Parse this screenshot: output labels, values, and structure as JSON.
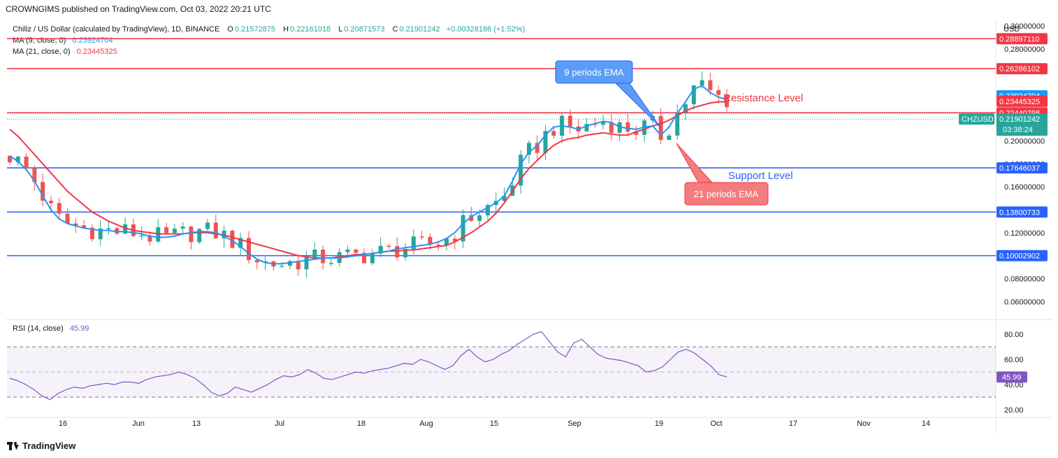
{
  "header": {
    "credit": "CROWNGIMS published on TradingView.com, Oct 03, 2022 20:21 UTC"
  },
  "legend": {
    "symbol": "Chiliz / US Dollar (calculated by TradingView), 1D, BINANCE",
    "o_label": "O",
    "o": "0.21572875",
    "h_label": "H",
    "h": "0.22161018",
    "l_label": "L",
    "l": "0.20871573",
    "c_label": "C",
    "c": "0.21901242",
    "change": "+0.00328186 (+1.52%)",
    "ma9_label": "MA (9, close, 0)",
    "ma9": "0.23924704",
    "ma21_label": "MA (21, close, 0)",
    "ma21": "0.23445325",
    "rsi_label": "RSI (14, close)",
    "rsi": "45.99"
  },
  "currency": "USD",
  "annotations": {
    "ema9": "9 periods EMA",
    "ema21": "21 periods EMA",
    "resistance": "Resistance Level",
    "support": "Support Level"
  },
  "footer": {
    "brand": "TradingView"
  },
  "colors": {
    "up": "#26a69a",
    "down": "#ef5350",
    "ma9": "#2196f3",
    "ma21": "#f23645",
    "level_red": "#f23645",
    "level_blue": "#2962ff",
    "rsi": "#7e57c2"
  },
  "chart_data": {
    "type": "candlestick",
    "ylim": [
      0.045,
      0.305
    ],
    "y_ticks": [
      "0.30000000",
      "0.28000000",
      "0.20000000",
      "0.18000000",
      "0.16000000",
      "0.12000000",
      "0.08000000",
      "0.06000000"
    ],
    "x_ticks": [
      "16",
      "Jun",
      "13",
      "Jul",
      "18",
      "Aug",
      "15",
      "Sep",
      "19",
      "Oct",
      "17",
      "Nov",
      "14"
    ],
    "resistance_levels": [
      {
        "label": "0.28897110",
        "value": 0.2889711
      },
      {
        "label": "0.26286102",
        "value": 0.26286102
      },
      {
        "label": "0.22440798",
        "value": 0.22440798
      }
    ],
    "support_levels": [
      {
        "label": "0.17646037",
        "value": 0.17646037
      },
      {
        "label": "0.13800733",
        "value": 0.13800733
      },
      {
        "label": "0.10002902",
        "value": 0.10002902
      }
    ],
    "price_tags": [
      {
        "label": "0.23924704",
        "value": 0.23924704,
        "kind": "ma9"
      },
      {
        "label": "0.23445325",
        "value": 0.23445325,
        "kind": "ma21"
      }
    ],
    "last_price": {
      "symbol": "CHZUSD",
      "label": "0.21901242",
      "value": 0.21901242,
      "countdown": "03:38:24"
    },
    "ma9_series": [
      0.187,
      0.182,
      0.175,
      0.165,
      0.152,
      0.14,
      0.132,
      0.128,
      0.126,
      0.124,
      0.123,
      0.122,
      0.122,
      0.121,
      0.121,
      0.12,
      0.119,
      0.117,
      0.116,
      0.116,
      0.117,
      0.119,
      0.12,
      0.121,
      0.121,
      0.12,
      0.117,
      0.113,
      0.108,
      0.102,
      0.097,
      0.094,
      0.093,
      0.093,
      0.094,
      0.095,
      0.096,
      0.097,
      0.098,
      0.098,
      0.098,
      0.099,
      0.1,
      0.101,
      0.102,
      0.103,
      0.104,
      0.106,
      0.107,
      0.108,
      0.109,
      0.11,
      0.112,
      0.115,
      0.12,
      0.128,
      0.134,
      0.138,
      0.142,
      0.146,
      0.152,
      0.165,
      0.18,
      0.19,
      0.196,
      0.205,
      0.212,
      0.213,
      0.212,
      0.21,
      0.213,
      0.215,
      0.217,
      0.216,
      0.212,
      0.211,
      0.21,
      0.212,
      0.213,
      0.205,
      0.212,
      0.224,
      0.234,
      0.245,
      0.248,
      0.242,
      0.238,
      0.236
    ],
    "ma21_series": [
      0.21,
      0.204,
      0.196,
      0.188,
      0.18,
      0.172,
      0.164,
      0.156,
      0.15,
      0.144,
      0.138,
      0.134,
      0.13,
      0.127,
      0.124,
      0.122,
      0.121,
      0.12,
      0.119,
      0.119,
      0.119,
      0.119,
      0.12,
      0.12,
      0.12,
      0.119,
      0.118,
      0.116,
      0.114,
      0.112,
      0.11,
      0.108,
      0.106,
      0.104,
      0.102,
      0.1,
      0.099,
      0.098,
      0.098,
      0.098,
      0.099,
      0.1,
      0.101,
      0.101,
      0.102,
      0.103,
      0.104,
      0.104,
      0.105,
      0.105,
      0.106,
      0.107,
      0.108,
      0.109,
      0.112,
      0.116,
      0.12,
      0.125,
      0.13,
      0.137,
      0.146,
      0.156,
      0.167,
      0.176,
      0.183,
      0.19,
      0.196,
      0.2,
      0.202,
      0.203,
      0.205,
      0.206,
      0.207,
      0.206,
      0.205,
      0.205,
      0.208,
      0.21,
      0.213,
      0.215,
      0.218,
      0.222,
      0.226,
      0.229,
      0.231,
      0.233,
      0.234,
      0.234
    ],
    "rsi": {
      "ylim": [
        15,
        90
      ],
      "y_ticks": [
        "80.00",
        "60.00",
        "40.00",
        "20.00"
      ],
      "bands": [
        70,
        50,
        30
      ],
      "values": [
        45,
        43,
        40,
        36,
        31,
        28,
        33,
        36,
        38,
        37,
        39,
        40,
        41,
        40,
        42,
        42,
        41,
        44,
        46,
        47,
        48,
        50,
        48,
        45,
        40,
        34,
        31,
        33,
        38,
        36,
        34,
        37,
        40,
        44,
        47,
        46,
        48,
        52,
        49,
        45,
        44,
        46,
        48,
        50,
        49,
        51,
        52,
        53,
        55,
        57,
        56,
        60,
        58,
        55,
        52,
        55,
        63,
        68,
        62,
        58,
        60,
        64,
        67,
        72,
        76,
        80,
        82,
        74,
        66,
        62,
        73,
        76,
        70,
        64,
        61,
        60,
        59,
        57,
        55,
        50,
        51,
        54,
        60,
        66,
        68,
        65,
        60,
        55,
        48,
        46
      ]
    }
  }
}
